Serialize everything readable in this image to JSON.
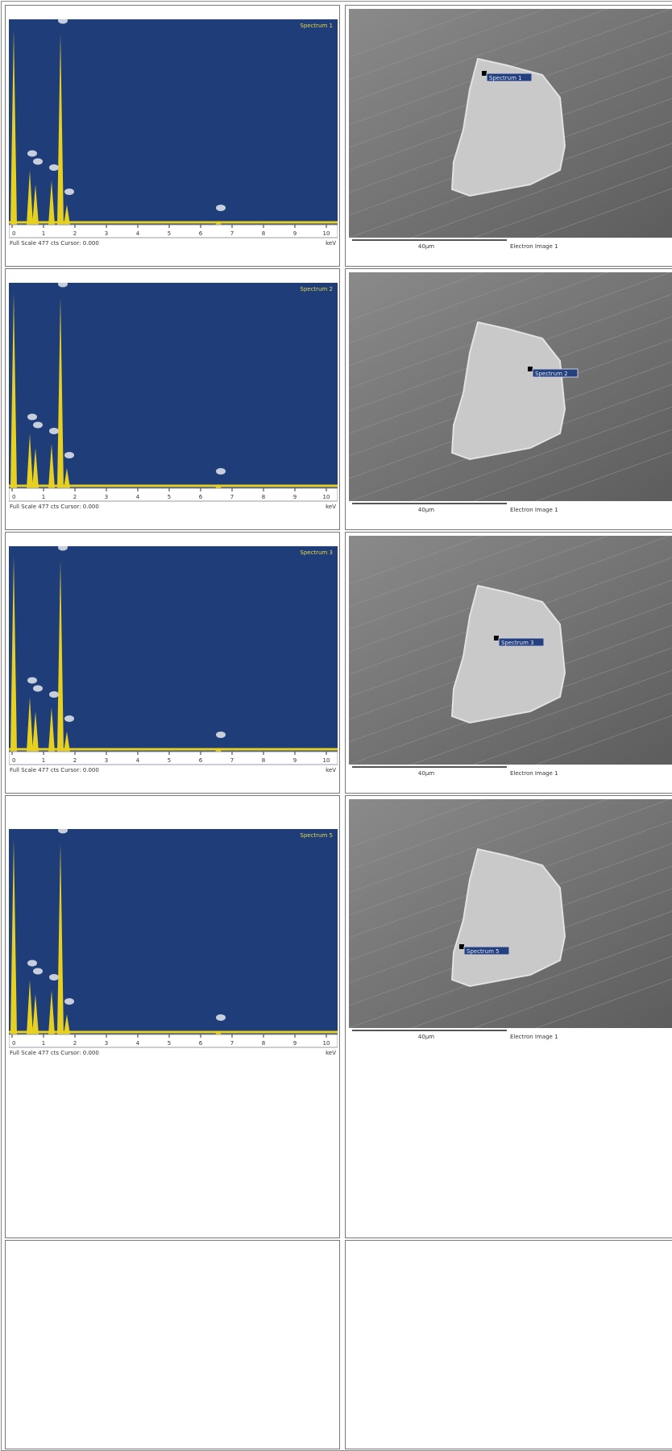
{
  "spectrum_axis": {
    "ticks": [
      "0",
      "1",
      "2",
      "3",
      "4",
      "5",
      "6",
      "7",
      "8",
      "9",
      "10"
    ],
    "unit": "keV",
    "footer": "Full Scale 477 cts Cursor: 0.000"
  },
  "image_strip": {
    "scale": "40µm",
    "caption": "Electron Image 1"
  },
  "rows": [
    {
      "spectrum": "Spectrum 1",
      "marker": "Spectrum 1"
    },
    {
      "spectrum": "Spectrum 2",
      "marker": "Spectrum 2"
    },
    {
      "spectrum": "Spectrum 3",
      "marker": "Spectrum 3"
    },
    {
      "spectrum": "Spectrum 5",
      "marker": "Spectrum 5"
    }
  ]
}
